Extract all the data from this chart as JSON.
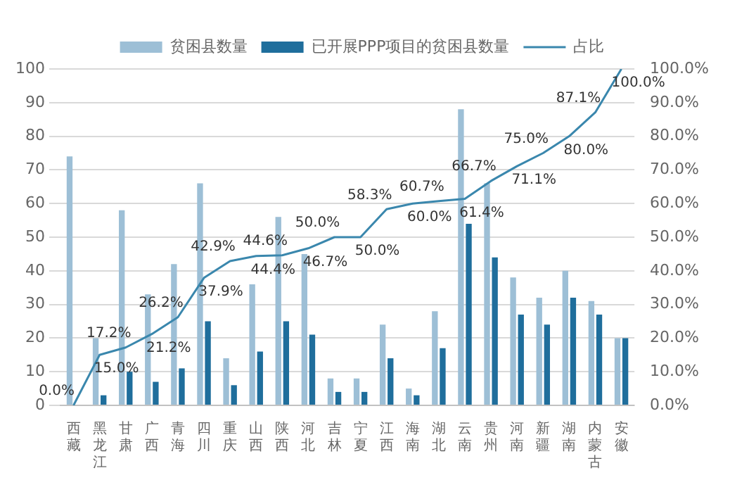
{
  "chart_data": {
    "type": "bar",
    "categories": [
      "西藏",
      "黑龙江",
      "甘肃",
      "广西",
      "青海",
      "四川",
      "重庆",
      "山西",
      "陕西",
      "河北",
      "吉林",
      "宁夏",
      "江西",
      "海南",
      "湖北",
      "云南",
      "贵州",
      "河南",
      "新疆",
      "湖南",
      "内蒙古",
      "安徽"
    ],
    "series": [
      {
        "name": "贫困县数量",
        "color": "#9dbfd6",
        "values": [
          74,
          20,
          58,
          33,
          42,
          66,
          14,
          36,
          56,
          45,
          8,
          8,
          24,
          5,
          28,
          88,
          66,
          38,
          32,
          40,
          31,
          20
        ]
      },
      {
        "name": "已开展PPP项目的贫困县数量",
        "color": "#1f6e9c",
        "values": [
          0,
          3,
          10,
          7,
          11,
          25,
          6,
          16,
          25,
          21,
          4,
          4,
          14,
          3,
          17,
          54,
          44,
          27,
          24,
          32,
          27,
          20
        ]
      },
      {
        "name": "占比",
        "type": "line",
        "axis": "y2",
        "color": "#3a87ad",
        "values": [
          0.0,
          15.0,
          17.2,
          21.2,
          26.2,
          37.9,
          42.9,
          44.4,
          44.6,
          46.7,
          50.0,
          50.0,
          58.3,
          60.0,
          60.7,
          61.4,
          66.7,
          71.1,
          75.0,
          80.0,
          87.1,
          100.0
        ],
        "value_labels": [
          "0.0%",
          "15.0%",
          "17.2%",
          "21.2%",
          "26.2%",
          "37.9%",
          "42.9%",
          "44.4%",
          "44.6%",
          "46.7%",
          "50.0%",
          "50.0%",
          "58.3%",
          "60.0%",
          "60.7%",
          "61.4%",
          "66.7%",
          "71.1%",
          "75.0%",
          "80.0%",
          "87.1%",
          "100.0%"
        ]
      }
    ],
    "ylim": [
      0,
      100
    ],
    "yticks": [
      0,
      10,
      20,
      30,
      40,
      50,
      60,
      70,
      80,
      90,
      100
    ],
    "y2lim": [
      0,
      100
    ],
    "y2ticks": [
      {
        "value": 0,
        "label": "0.0%"
      },
      {
        "value": 10,
        "label": "10.0%"
      },
      {
        "value": 20,
        "label": "20.0%"
      },
      {
        "value": 30,
        "label": "30.0%"
      },
      {
        "value": 40,
        "label": "40.0%"
      },
      {
        "value": 50,
        "label": "50.0%"
      },
      {
        "value": 60,
        "label": "60.0%"
      },
      {
        "value": 70,
        "label": "70.0%"
      },
      {
        "value": 80,
        "label": "80.0%"
      },
      {
        "value": 90,
        "label": "90.0%"
      },
      {
        "value": 100,
        "label": "100.0%"
      }
    ],
    "grid": "y",
    "legend": "top"
  }
}
